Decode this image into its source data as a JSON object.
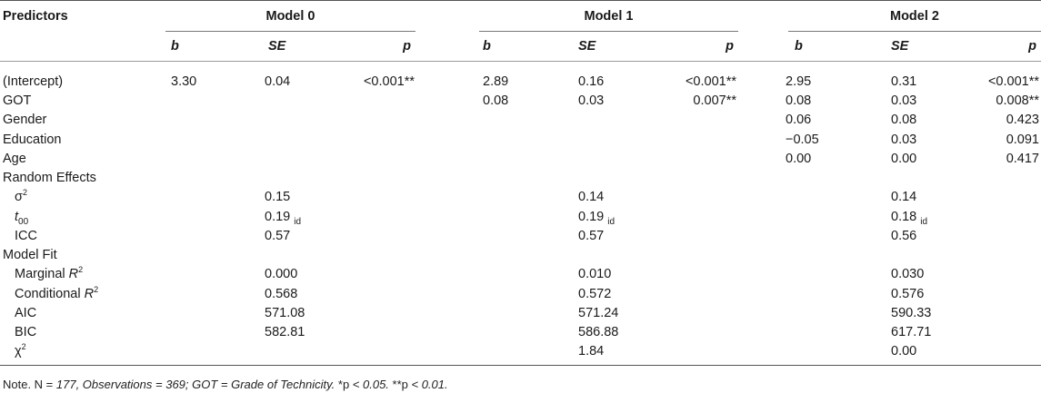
{
  "header": {
    "predictors": "Predictors",
    "models": [
      "Model 0",
      "Model 1",
      "Model 2"
    ],
    "cols": [
      "b",
      "SE",
      "p"
    ]
  },
  "rows": [
    {
      "label": "(Intercept)",
      "m0": [
        "3.30",
        "0.04",
        "<0.001**"
      ],
      "m1": [
        "2.89",
        "0.16",
        "<0.001**"
      ],
      "m2": [
        "2.95",
        "0.31",
        "<0.001**"
      ]
    },
    {
      "label": "GOT",
      "m0": [
        "",
        "",
        ""
      ],
      "m1": [
        "0.08",
        "0.03",
        "0.007**"
      ],
      "m2": [
        "0.08",
        "0.03",
        "0.008**"
      ]
    },
    {
      "label": "Gender",
      "m0": [
        "",
        "",
        ""
      ],
      "m1": [
        "",
        "",
        ""
      ],
      "m2": [
        "0.06",
        "0.08",
        "0.423"
      ]
    },
    {
      "label": "Education",
      "m0": [
        "",
        "",
        ""
      ],
      "m1": [
        "",
        "",
        ""
      ],
      "m2": [
        "−0.05",
        "0.03",
        "0.091"
      ]
    },
    {
      "label": "Age",
      "m0": [
        "",
        "",
        ""
      ],
      "m1": [
        "",
        "",
        ""
      ],
      "m2": [
        "0.00",
        "0.00",
        "0.417"
      ]
    }
  ],
  "random_effects": {
    "label": "Random Effects",
    "sigma": {
      "symbol": "σ",
      "sup": "2",
      "values": [
        "0.15",
        "0.14",
        "0.14"
      ]
    },
    "tau": {
      "symbol": "t",
      "sub": "00",
      "values": [
        "0.19",
        "0.19",
        "0.18"
      ],
      "suffix": "id"
    },
    "icc": {
      "label": "ICC",
      "values": [
        "0.57",
        "0.57",
        "0.56"
      ]
    }
  },
  "model_fit": {
    "label": "Model Fit",
    "marginal": {
      "label": "Marginal ",
      "r": "R",
      "sup": "2",
      "values": [
        "0.000",
        "0.010",
        "0.030"
      ]
    },
    "conditional": {
      "label": "Conditional ",
      "r": "R",
      "sup": "2",
      "values": [
        "0.568",
        "0.572",
        "0.576"
      ]
    },
    "aic": {
      "label": "AIC",
      "values": [
        "571.08",
        "571.24",
        "590.33"
      ]
    },
    "bic": {
      "label": "BIC",
      "values": [
        "582.81",
        "586.88",
        "617.71"
      ]
    },
    "chi": {
      "symbol": "χ",
      "sup": "2",
      "values": [
        "",
        "1.84",
        "0.00"
      ]
    }
  },
  "note": {
    "prefix": "Note. N = ",
    "italic1": "177, Observations = 369; GOT = Grade of Technicity.",
    "p1": " *p ",
    "italic2": "< 0.05.",
    "p2": " **p ",
    "italic3": "< 0.01."
  }
}
